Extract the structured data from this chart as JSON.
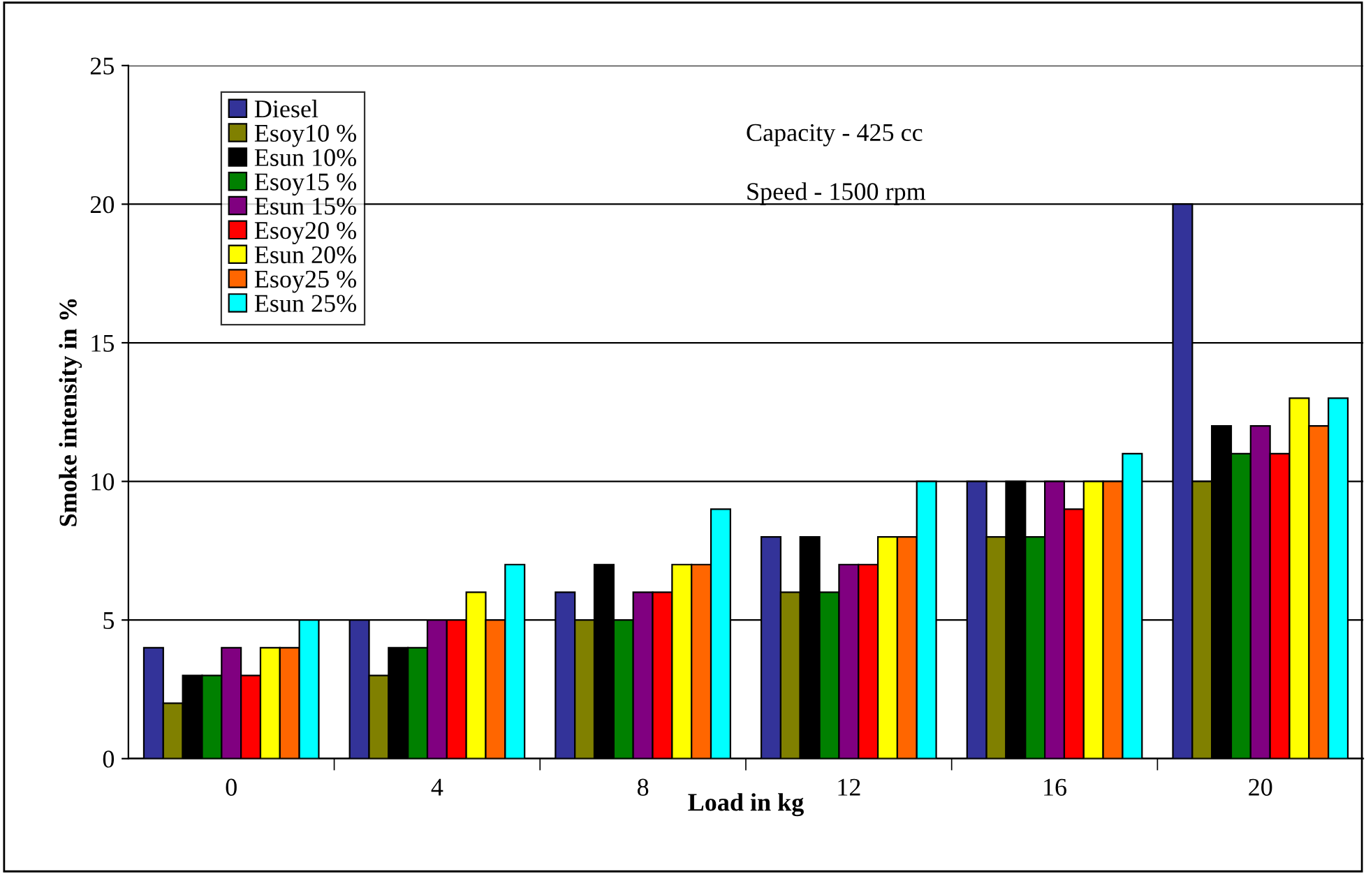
{
  "chart_data": {
    "type": "bar",
    "xlabel": "Load in kg",
    "ylabel": "Smoke intensity in %",
    "categories": [
      "0",
      "4",
      "8",
      "12",
      "16",
      "20"
    ],
    "series": [
      {
        "name": "Diesel",
        "color": "#333399",
        "values": [
          4,
          5,
          6,
          8,
          10,
          20
        ]
      },
      {
        "name": "Esoy10 %",
        "color": "#808000",
        "values": [
          2,
          3,
          5,
          6,
          8,
          10
        ]
      },
      {
        "name": "Esun 10%",
        "color": "#000000",
        "values": [
          3,
          4,
          7,
          8,
          10,
          12
        ]
      },
      {
        "name": "Esoy15 %",
        "color": "#008000",
        "values": [
          3,
          4,
          5,
          6,
          8,
          11
        ]
      },
      {
        "name": "Esun 15%",
        "color": "#800080",
        "values": [
          4,
          5,
          6,
          7,
          10,
          12
        ]
      },
      {
        "name": "Esoy20 %",
        "color": "#ff0000",
        "values": [
          3,
          5,
          6,
          7,
          9,
          11
        ]
      },
      {
        "name": "Esun 20%",
        "color": "#ffff00",
        "values": [
          4,
          6,
          7,
          8,
          10,
          13
        ]
      },
      {
        "name": "Esoy25 %",
        "color": "#ff6600",
        "values": [
          4,
          5,
          7,
          8,
          10,
          12
        ]
      },
      {
        "name": "Esun 25%",
        "color": "#00ffff",
        "values": [
          5,
          7,
          9,
          10,
          11,
          13
        ]
      }
    ],
    "ylim": [
      0,
      25
    ],
    "yticks": [
      0,
      5,
      10,
      15,
      20,
      25
    ],
    "grid": "y",
    "legend": "top left",
    "annotations": [
      "Capacity - 425 cc",
      "Speed - 1500 rpm"
    ]
  }
}
